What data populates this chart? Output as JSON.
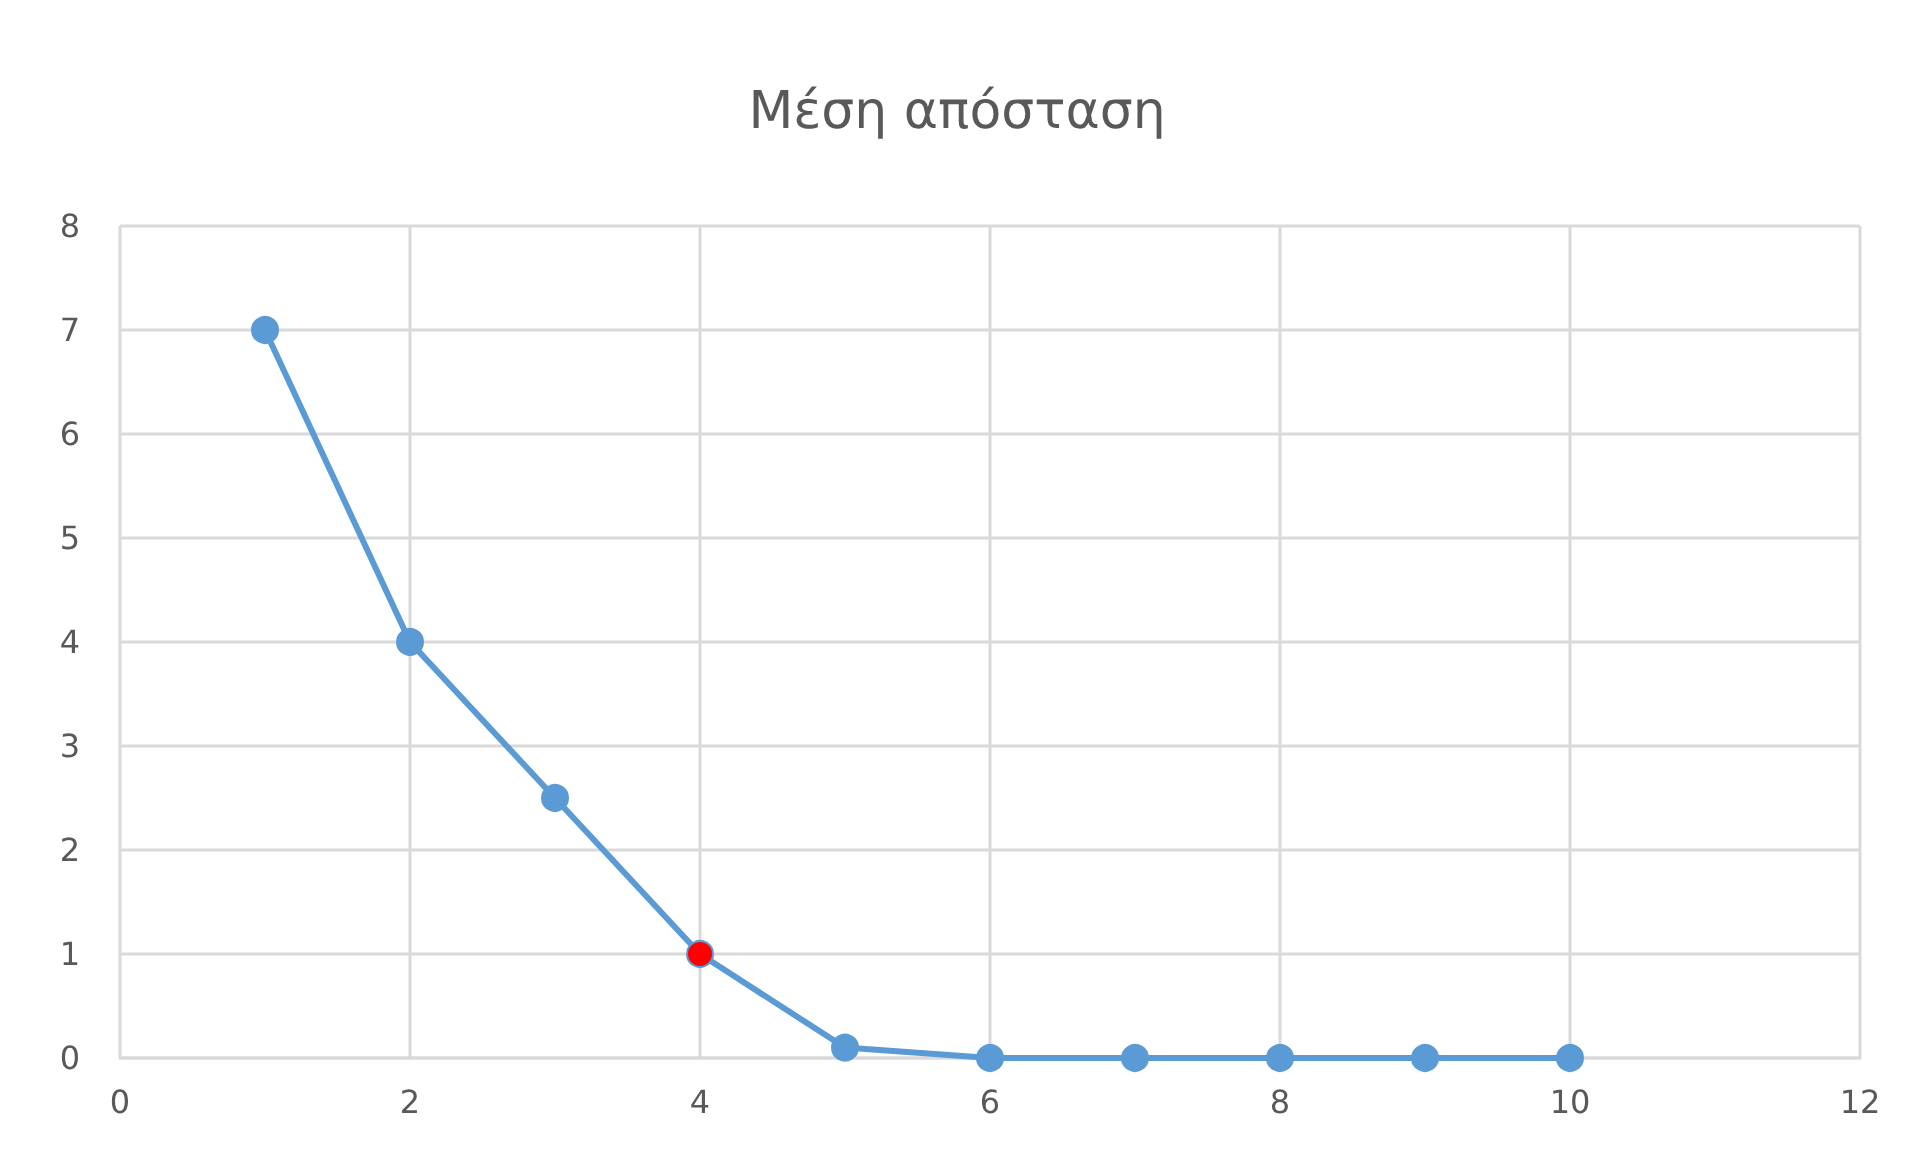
{
  "chart_data": {
    "type": "line",
    "title": "Μέση απόσταση",
    "x": [
      1,
      2,
      3,
      4,
      5,
      6,
      7,
      8,
      9,
      10
    ],
    "series": [
      {
        "color": "#5b9bd5",
        "values": [
          7,
          4,
          2.5,
          1,
          0.1,
          0,
          0,
          0,
          0,
          0
        ],
        "colors": [
          "#5b9bd5",
          "#5b9bd5",
          "#5b9bd5",
          "#ff0000",
          "#5b9bd5",
          "#5b9bd5",
          "#5b9bd5",
          "#5b9bd5",
          "#5b9bd5",
          "#5b9bd5"
        ]
      }
    ],
    "xlim": [
      0,
      12
    ],
    "xticks": [
      0,
      2,
      4,
      6,
      8,
      10,
      12
    ],
    "ylim": [
      0,
      8
    ],
    "yticks": [
      0,
      1,
      2,
      3,
      4,
      5,
      6,
      7,
      8
    ],
    "grid": true,
    "marker": "circle",
    "line_style": "solid"
  }
}
